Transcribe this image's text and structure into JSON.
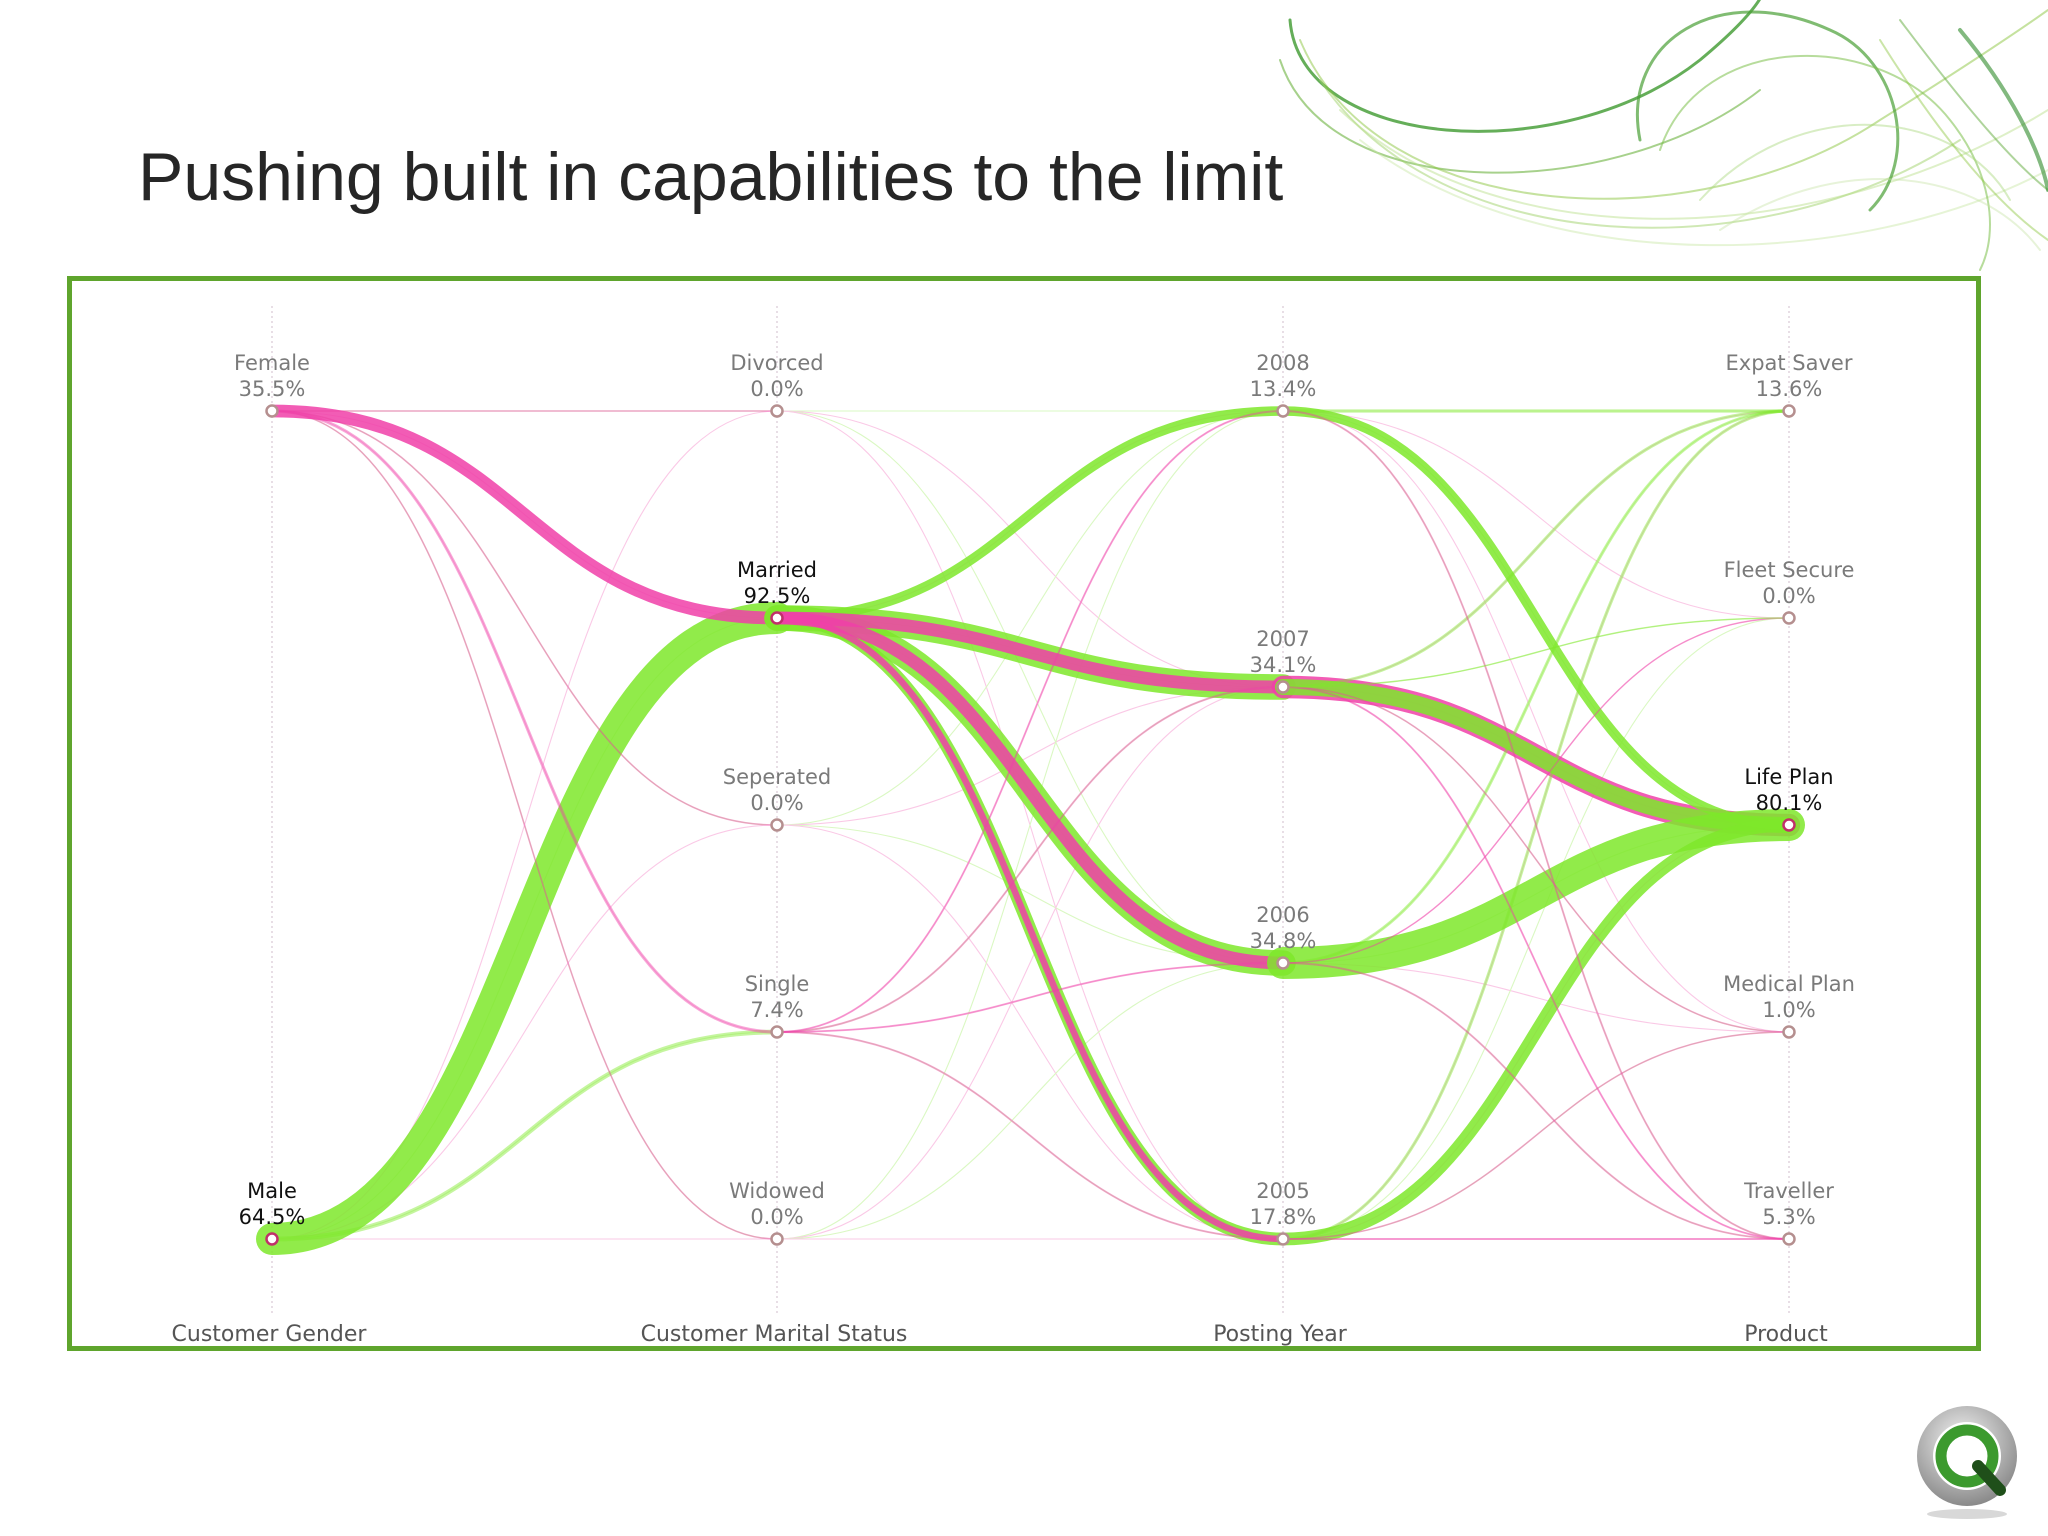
{
  "slide": {
    "title": "Pushing built in capabilities to the limit",
    "frame_color": "#5fa52d"
  },
  "logo": {
    "name": "qlikview-logo",
    "color": "#3c9a2e"
  },
  "chart_data": {
    "type": "parallel-sets",
    "series_colors": {
      "Female": "#f040a8",
      "Male": "#7ee82a"
    },
    "dimensions": [
      {
        "name": "Customer Gender",
        "categories": [
          {
            "label": "Female",
            "value": "35.5%",
            "highlight": false
          },
          {
            "label": "Male",
            "value": "64.5%",
            "highlight": true
          }
        ]
      },
      {
        "name": "Customer Marital Status",
        "categories": [
          {
            "label": "Divorced",
            "value": "0.0%",
            "highlight": false
          },
          {
            "label": "Married",
            "value": "92.5%",
            "highlight": true
          },
          {
            "label": "Seperated",
            "value": "0.0%",
            "highlight": false
          },
          {
            "label": "Single",
            "value": "7.4%",
            "highlight": false
          },
          {
            "label": "Widowed",
            "value": "0.0%",
            "highlight": false
          }
        ]
      },
      {
        "name": "Posting Year",
        "categories": [
          {
            "label": "2008",
            "value": "13.4%",
            "highlight": false
          },
          {
            "label": "2007",
            "value": "34.1%",
            "highlight": false
          },
          {
            "label": "2006",
            "value": "34.8%",
            "highlight": false
          },
          {
            "label": "2005",
            "value": "17.8%",
            "highlight": false
          }
        ]
      },
      {
        "name": "Product",
        "categories": [
          {
            "label": "Expat Saver",
            "value": "13.6%",
            "highlight": false
          },
          {
            "label": "Fleet Secure",
            "value": "0.0%",
            "highlight": false
          },
          {
            "label": "Life Plan",
            "value": "80.1%",
            "highlight": true
          },
          {
            "label": "Medical Plan",
            "value": "1.0%",
            "highlight": false
          },
          {
            "label": "Traveller",
            "value": "5.3%",
            "highlight": false
          }
        ]
      }
    ],
    "flows": [
      {
        "from": "Male",
        "to": "Married",
        "color": "Male",
        "weight": 10
      },
      {
        "from": "Male",
        "to": "Single",
        "color": "Male",
        "weight": 1.5
      },
      {
        "from": "Female",
        "to": "Married",
        "color": "Female",
        "weight": 4
      },
      {
        "from": "Female",
        "to": "Single",
        "color": "Female",
        "weight": 1
      },
      {
        "from": "Female",
        "to": "Divorced",
        "color": "Female",
        "weight": 0.5
      },
      {
        "from": "Female",
        "to": "Seperated",
        "color": "Female",
        "weight": 0.5
      },
      {
        "from": "Female",
        "to": "Widowed",
        "color": "Female",
        "weight": 0.5
      },
      {
        "from": "Married",
        "to": "2008",
        "color": "Male",
        "weight": 3
      },
      {
        "from": "Married",
        "to": "2007",
        "color": "Male",
        "weight": 8
      },
      {
        "from": "Married",
        "to": "2006",
        "color": "Male",
        "weight": 8
      },
      {
        "from": "Married",
        "to": "2005",
        "color": "Male",
        "weight": 4
      },
      {
        "from": "Married",
        "to": "2007",
        "color": "Female",
        "weight": 4
      },
      {
        "from": "Married",
        "to": "2006",
        "color": "Female",
        "weight": 4
      },
      {
        "from": "Married",
        "to": "2005",
        "color": "Female",
        "weight": 2
      },
      {
        "from": "Single",
        "to": "2008",
        "color": "Female",
        "weight": 0.6
      },
      {
        "from": "Single",
        "to": "2007",
        "color": "Female",
        "weight": 0.6
      },
      {
        "from": "Single",
        "to": "2006",
        "color": "Female",
        "weight": 0.6
      },
      {
        "from": "Single",
        "to": "2005",
        "color": "Female",
        "weight": 0.6
      },
      {
        "from": "2007",
        "to": "Life Plan",
        "color": "Female",
        "weight": 7
      },
      {
        "from": "2007",
        "to": "Life Plan",
        "color": "Male",
        "weight": 5
      },
      {
        "from": "2006",
        "to": "Life Plan",
        "color": "Male",
        "weight": 10
      },
      {
        "from": "2005",
        "to": "Life Plan",
        "color": "Male",
        "weight": 4
      },
      {
        "from": "2008",
        "to": "Life Plan",
        "color": "Male",
        "weight": 3
      },
      {
        "from": "2008",
        "to": "Expat Saver",
        "color": "Male",
        "weight": 1
      },
      {
        "from": "2007",
        "to": "Expat Saver",
        "color": "Male",
        "weight": 1
      },
      {
        "from": "2006",
        "to": "Expat Saver",
        "color": "Male",
        "weight": 1
      },
      {
        "from": "2005",
        "to": "Expat Saver",
        "color": "Male",
        "weight": 1
      },
      {
        "from": "2008",
        "to": "Traveller",
        "color": "Female",
        "weight": 0.6
      },
      {
        "from": "2007",
        "to": "Traveller",
        "color": "Female",
        "weight": 0.6
      },
      {
        "from": "2006",
        "to": "Traveller",
        "color": "Female",
        "weight": 0.6
      },
      {
        "from": "2005",
        "to": "Traveller",
        "color": "Female",
        "weight": 0.6
      },
      {
        "from": "2007",
        "to": "Medical Plan",
        "color": "Female",
        "weight": 0.5
      },
      {
        "from": "2005",
        "to": "Medical Plan",
        "color": "Female",
        "weight": 0.5
      },
      {
        "from": "2006",
        "to": "Fleet Secure",
        "color": "Female",
        "weight": 0.4
      },
      {
        "from": "2007",
        "to": "Fleet Secure",
        "color": "Male",
        "weight": 0.4
      }
    ]
  }
}
